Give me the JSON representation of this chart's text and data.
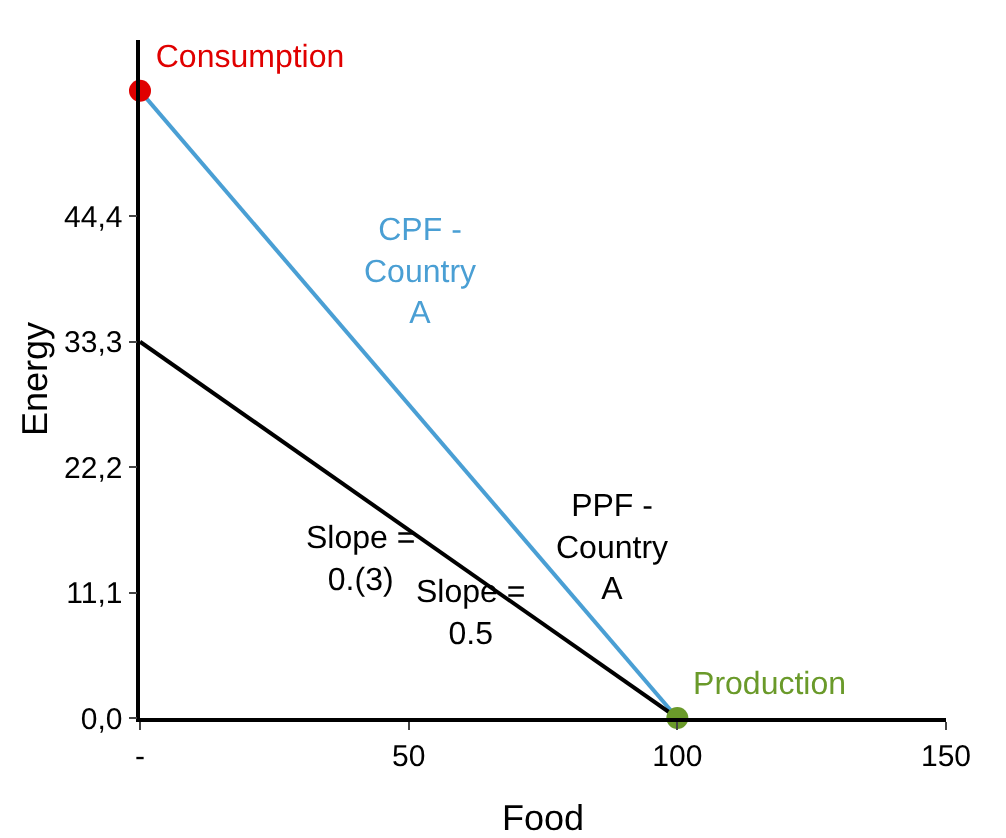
{
  "chart_data": {
    "type": "line",
    "xlabel": "Food",
    "ylabel": "Energy",
    "xlim": [
      0,
      150
    ],
    "ylim": [
      0,
      60
    ],
    "xticks": [
      {
        "value": 0,
        "label": "-"
      },
      50,
      100,
      150
    ],
    "yticks": [
      {
        "value": 0,
        "label": "0,0"
      },
      {
        "value": 11.1,
        "label": "11,1"
      },
      {
        "value": 22.2,
        "label": "22,2"
      },
      {
        "value": 33.3,
        "label": "33,3"
      },
      {
        "value": 44.4,
        "label": "44,4"
      }
    ],
    "x": [
      0,
      100
    ],
    "series": [
      {
        "name": "CPF - Country A",
        "color": "#4a9fd4",
        "values": [
          55.5,
          0
        ]
      },
      {
        "name": "PPF - Country A",
        "color": "#000000",
        "values": [
          33.3,
          0
        ]
      },
      {
        "name": "Consumption",
        "type": "scatter",
        "color": "#e00000",
        "values": [
          55.5,
          null
        ]
      },
      {
        "name": "Production",
        "type": "scatter",
        "color": "#6a9a2a",
        "values": [
          null,
          0
        ]
      }
    ],
    "annotations": [
      "Slope = 0.(3)",
      "Slope = 0.5"
    ],
    "legend": false,
    "grid": false
  }
}
